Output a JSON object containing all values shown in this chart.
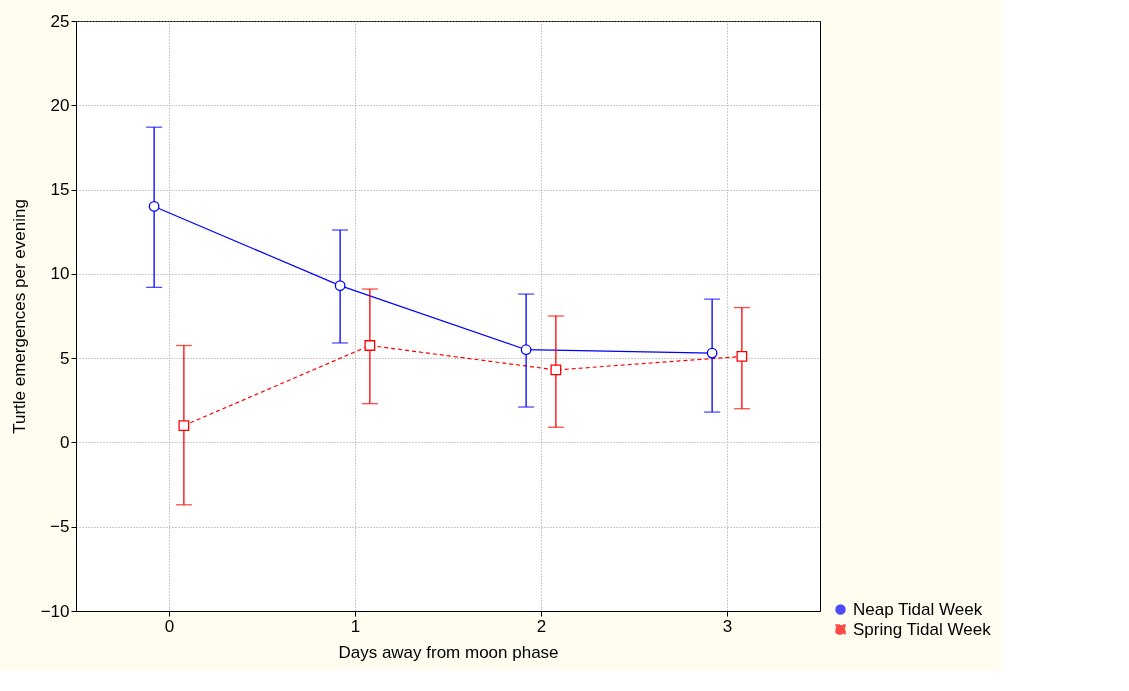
{
  "chart_data": {
    "type": "line",
    "xlabel": "Days away from moon phase",
    "ylabel": "Turtle emergences per evening",
    "xlim": [
      -0.5,
      3.5
    ],
    "xticks": [
      0,
      1,
      2,
      3
    ],
    "ylim": [
      -10,
      25
    ],
    "yticks": [
      -10,
      -5,
      0,
      5,
      10,
      15,
      20,
      25
    ],
    "grid": true,
    "legend": "bottom right",
    "series": [
      {
        "name": "Neap Tidal Week",
        "color": "#0000ff",
        "marker": "circle",
        "line_style": "solid",
        "x": [
          -0.08,
          0.92,
          1.92,
          2.92
        ],
        "values": [
          14.0,
          9.3,
          5.5,
          5.3
        ],
        "errors": [
          [
            9.2,
            18.7
          ],
          [
            5.9,
            12.6
          ],
          [
            2.1,
            8.8
          ],
          [
            1.8,
            8.5
          ]
        ]
      },
      {
        "name": "Spring Tidal Week",
        "color": "#ff0000",
        "marker": "square",
        "line_style": "dashed",
        "x": [
          0.08,
          1.08,
          2.08,
          3.08
        ],
        "values": [
          1.0,
          5.75,
          4.3,
          5.1
        ],
        "errors": [
          [
            -3.7,
            5.75
          ],
          [
            2.3,
            9.1
          ],
          [
            0.9,
            7.5
          ],
          [
            2.0,
            8.0
          ]
        ]
      }
    ]
  }
}
